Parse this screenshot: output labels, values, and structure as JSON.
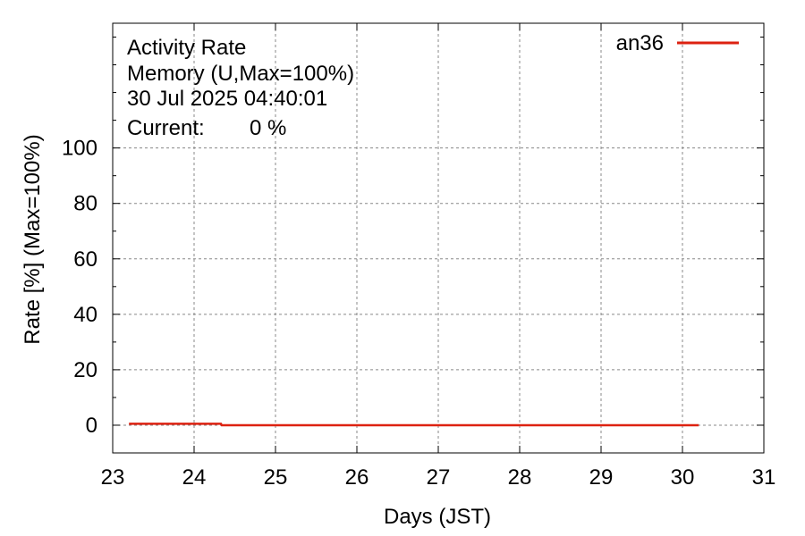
{
  "chart_data": {
    "type": "line",
    "title_lines": [
      "Activity Rate",
      "Memory (U,Max=100%)",
      "30 Jul 2025 04:40:01"
    ],
    "current_label": "Current:",
    "current_value": "0 %",
    "xlabel": "Days (JST)",
    "ylabel": "Rate [%]  (Max=100%)",
    "xlim": [
      23,
      31
    ],
    "ylim": [
      -10,
      145
    ],
    "xticks": [
      23,
      24,
      25,
      26,
      27,
      28,
      29,
      30,
      31
    ],
    "yticks": [
      0,
      20,
      40,
      60,
      80,
      100
    ],
    "grid": true,
    "legend_position": "top-right",
    "colors": {
      "series": "#dd2211",
      "current": "#dd2211",
      "grid": "#888888"
    },
    "series": [
      {
        "name": "an36",
        "x": [
          23.2,
          23.5,
          23.8,
          24.1,
          24.33,
          24.34,
          25,
          26,
          27,
          28,
          29,
          30,
          30.2
        ],
        "y": [
          0.5,
          0.5,
          0.5,
          0.5,
          0.5,
          0,
          0,
          0,
          0,
          0,
          0,
          0,
          0
        ]
      }
    ]
  }
}
